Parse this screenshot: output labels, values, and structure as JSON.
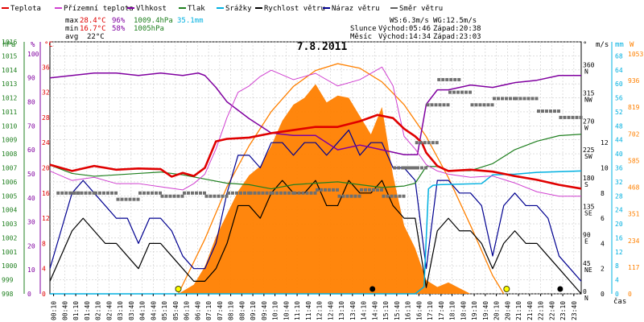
{
  "chart_data": {
    "type": "line",
    "title": "7.8.2011",
    "xlabel": "čas",
    "legend": [
      {
        "label": "Teplota",
        "color": "#e00000"
      },
      {
        "label": "Přízemní teplota",
        "color": "#d040d0"
      },
      {
        "label": "Vlhkost",
        "color": "#8000a0"
      },
      {
        "label": "Tlak",
        "color": "#208020"
      },
      {
        "label": "Srážky",
        "color": "#00b0e0"
      },
      {
        "label": "Rychlost větru",
        "color": "#000000"
      },
      {
        "label": "Náraz větru",
        "color": "#000090"
      },
      {
        "label": "Směr větru",
        "color": "#606060"
      }
    ],
    "stats": {
      "max": {
        "label": "max",
        "temp": "28.4°C",
        "hum": "96%",
        "press": "1009.4hPa",
        "rain": "35.1mm"
      },
      "min": {
        "label": "min",
        "temp": "16.7°C",
        "hum": "58%",
        "press": "1005hPa"
      },
      "avg": {
        "label": "avg",
        "temp": "22°C"
      }
    },
    "wind_info": {
      "ws": "WS:6.3m/s",
      "wg": "WG:12.5m/s"
    },
    "sun": {
      "label": "Slunce",
      "rise": "Východ:05:46",
      "set": "Západ:20:38"
    },
    "moon": {
      "label": "Měsíc",
      "rise": "Východ:14:34",
      "set": "Západ:23:03"
    },
    "axes": {
      "hpa": {
        "unit": "hPa",
        "color": "#208020",
        "ticks": [
          "998",
          "999",
          "1000",
          "1001",
          "1002",
          "1003",
          "1004",
          "1005",
          "1006",
          "1007",
          "1008",
          "1009",
          "1010",
          "1011",
          "1012",
          "1013",
          "1014",
          "1015",
          "1016"
        ]
      },
      "pct": {
        "unit": "%",
        "color": "#8000a0",
        "ticks": [
          "0",
          "10",
          "20",
          "30",
          "40",
          "50",
          "60",
          "70",
          "80",
          "90",
          "100"
        ]
      },
      "temp": {
        "unit": "°C",
        "color": "#e00000",
        "ticks": [
          "0",
          "4",
          "8",
          "12",
          "16",
          "20",
          "24",
          "28",
          "32",
          "36"
        ]
      },
      "ms": {
        "unit": "m/s",
        "color": "#000000",
        "ticks": [
          "0",
          "2",
          "4",
          "6",
          "8",
          "10",
          "12"
        ]
      },
      "deg": {
        "unit": "°",
        "color": "#000000",
        "ticks": [
          "0 N",
          "45 NE",
          "90 E",
          "135 SE",
          "180 S",
          "225 SW",
          "270 W",
          "315 NW",
          "360 N"
        ]
      },
      "mm": {
        "unit": "mm",
        "color": "#00b0e0",
        "ticks": [
          "0",
          "4",
          "8",
          "12",
          "16",
          "20",
          "24",
          "28",
          "32",
          "36",
          "40",
          "44",
          "48",
          "52",
          "56",
          "60",
          "64",
          "68"
        ]
      },
      "wm2": {
        "unit": "W",
        "color": "#ff8000",
        "ticks": [
          "0",
          "117",
          "234",
          "351",
          "468",
          "585",
          "702",
          "819",
          "936",
          "1053"
        ]
      }
    },
    "x_ticks": [
      "00:10",
      "00:40",
      "01:10",
      "01:40",
      "02:10",
      "02:40",
      "03:10",
      "03:40",
      "04:10",
      "04:40",
      "05:10",
      "05:40",
      "06:10",
      "06:40",
      "07:10",
      "07:40",
      "08:10",
      "08:40",
      "09:10",
      "09:40",
      "10:10",
      "10:40",
      "11:10",
      "11:40",
      "12:10",
      "12:40",
      "13:10",
      "13:40",
      "14:10",
      "14:40",
      "15:10",
      "15:40",
      "16:10",
      "16:40",
      "17:10",
      "17:40",
      "18:10",
      "18:40",
      "19:10",
      "19:40",
      "20:10",
      "20:40",
      "21:10",
      "21:40",
      "22:10",
      "22:40",
      "23:10",
      "23:40"
    ],
    "series": {
      "temperature": {
        "t": [
          0,
          1,
          2,
          3,
          4,
          5,
          5.5,
          6,
          6.5,
          7,
          7.5,
          8,
          9,
          10,
          11,
          12,
          13,
          14,
          14.8,
          15.5,
          16,
          16.5,
          16.8,
          17,
          17.5,
          18,
          19,
          20,
          21,
          22,
          23,
          24
        ],
        "v": [
          20.5,
          19.5,
          20.3,
          19.7,
          19.9,
          19.8,
          18.6,
          19.2,
          18.7,
          20,
          24.2,
          24.6,
          24.8,
          25.5,
          26,
          26.5,
          26.5,
          27.4,
          28.4,
          27.9,
          26.2,
          25,
          24,
          22.4,
          20.3,
          19.5,
          19.7,
          19.4,
          18.7,
          18.1,
          17.3,
          16.7
        ]
      },
      "ground_temperature": {
        "t": [
          0,
          1,
          2,
          3,
          4,
          5,
          6,
          6.5,
          7,
          7.5,
          8,
          8.5,
          9,
          9.5,
          10,
          11,
          12,
          13,
          14,
          15,
          15.5,
          16,
          16.5,
          17,
          17.5,
          18,
          19,
          20,
          21,
          22,
          23,
          24
        ],
        "v": [
          19.5,
          18,
          18.5,
          17.5,
          17.5,
          17,
          16.5,
          17.5,
          19,
          23,
          28,
          32,
          33,
          34.5,
          35.5,
          34,
          35,
          33,
          34,
          36,
          33,
          25,
          23,
          20.5,
          19.5,
          19,
          18.5,
          18.7,
          17.6,
          16.2,
          15.5,
          15.5
        ]
      },
      "humidity": {
        "t": [
          0,
          1,
          2,
          3,
          4,
          5,
          6,
          6.7,
          7,
          7.5,
          8,
          9,
          10,
          11,
          12,
          13,
          14,
          15,
          16,
          16.3,
          16.6,
          17,
          17.5,
          18,
          19,
          20,
          21,
          22,
          23,
          24
        ],
        "v": [
          90,
          91,
          92,
          92,
          91,
          92,
          91,
          92,
          91,
          86,
          80,
          73,
          67,
          66,
          66,
          60,
          62,
          60,
          58,
          58,
          58,
          79,
          85,
          85,
          87,
          86,
          88,
          89,
          91,
          91
        ]
      },
      "pressure": {
        "t": [
          0,
          1,
          2,
          3,
          4,
          5,
          6,
          7,
          8,
          9,
          10,
          11,
          12,
          13,
          14,
          15,
          16,
          16.5,
          17,
          17.5,
          18,
          19,
          20,
          21,
          22,
          23,
          24
        ],
        "v": [
          1007.2,
          1006.6,
          1006.4,
          1006.5,
          1006.6,
          1006.7,
          1006.5,
          1006.2,
          1005.9,
          1005.8,
          1005.5,
          1005.8,
          1005.9,
          1006,
          1005.8,
          1005.6,
          1005.7,
          1005.9,
          1007.1,
          1007.1,
          1006.8,
          1006.8,
          1007.3,
          1008.3,
          1008.9,
          1009.3,
          1009.4
        ]
      },
      "rain": {
        "t": [
          0,
          16.5,
          16.9,
          17.1,
          17.3,
          17.6,
          19.5,
          20,
          21,
          22,
          24
        ],
        "v": [
          0,
          0,
          2,
          30,
          31,
          31.2,
          31.5,
          34,
          34.2,
          34.7,
          35.1
        ]
      },
      "wind_speed": {
        "t": [
          0,
          0.5,
          1,
          1.5,
          2,
          2.5,
          3,
          3.5,
          4,
          4.5,
          5,
          5.5,
          6,
          6.5,
          7,
          7.5,
          8,
          8.5,
          9,
          9.5,
          10,
          10.5,
          11,
          11.5,
          12,
          12.5,
          13,
          13.5,
          14,
          14.5,
          15,
          15.5,
          16,
          16.5,
          17,
          17.5,
          18,
          18.5,
          19,
          19.5,
          20,
          20.5,
          21,
          21.5,
          22,
          22.5,
          23,
          23.5,
          24
        ],
        "v": [
          1,
          3,
          5,
          6,
          5,
          4,
          4,
          3,
          2,
          4,
          4,
          3,
          2,
          1,
          1,
          2,
          4,
          7,
          7,
          6,
          8,
          9,
          8,
          8,
          9,
          7,
          7,
          9,
          8,
          8,
          9,
          7,
          6,
          6,
          0.5,
          5,
          6,
          5,
          5,
          4,
          2,
          4,
          5,
          4,
          4,
          3,
          2,
          1,
          0
        ]
      },
      "wind_gust": {
        "t": [
          0,
          0.5,
          1,
          1.5,
          2,
          2.5,
          3,
          3.5,
          4,
          4.5,
          5,
          5.5,
          6,
          6.5,
          7,
          7.5,
          8,
          8.5,
          9,
          9.5,
          10,
          10.5,
          11,
          11.5,
          12,
          12.5,
          13,
          13.5,
          14,
          14.5,
          15,
          15.5,
          16,
          16.5,
          17,
          17.5,
          18,
          18.5,
          19,
          19.5,
          20,
          20.5,
          21,
          21.5,
          22,
          22.5,
          23,
          23.5,
          24
        ],
        "v": [
          2,
          5,
          8,
          9,
          8,
          7,
          6,
          6,
          4,
          6,
          6,
          5,
          3,
          2,
          2,
          4,
          8,
          11,
          11,
          10,
          12,
          12,
          11,
          12,
          12,
          11,
          12,
          13,
          11,
          12,
          12,
          10,
          10,
          9,
          2,
          9,
          9,
          8,
          8,
          7,
          3,
          7,
          8,
          7,
          7,
          6,
          3,
          2,
          1
        ]
      },
      "wind_dir_points": {
        "t": [
          0.3,
          1,
          2,
          3,
          4,
          5,
          6,
          7,
          8,
          9,
          10,
          11,
          12,
          13,
          14,
          15,
          15.5,
          16,
          16.5,
          17,
          17.5,
          18,
          19,
          20,
          21,
          22,
          23
        ],
        "v": [
          160,
          160,
          160,
          150,
          160,
          155,
          160,
          155,
          160,
          160,
          160,
          160,
          165,
          155,
          165,
          155,
          200,
          200,
          240,
          300,
          340,
          320,
          300,
          310,
          310,
          290,
          280
        ]
      },
      "solar_radiation": {
        "t": [
          5.8,
          6.5,
          7,
          7.5,
          8,
          8.5,
          9,
          9.5,
          10,
          10.5,
          11,
          11.5,
          12,
          12.5,
          13,
          13.5,
          14,
          14.5,
          15,
          15.5,
          16,
          16.5,
          17,
          17.5,
          18,
          19,
          20
        ],
        "v": [
          0,
          40,
          120,
          250,
          350,
          450,
          520,
          560,
          650,
          760,
          830,
          860,
          920,
          840,
          870,
          860,
          780,
          700,
          820,
          520,
          300,
          200,
          60,
          30,
          50,
          0,
          0
        ]
      },
      "solar_max": {
        "t": [
          5.8,
          7,
          8,
          9,
          10,
          11,
          12,
          13,
          14,
          15,
          16,
          17,
          18,
          19,
          20,
          20.5
        ],
        "v": [
          0,
          240,
          470,
          650,
          800,
          910,
          980,
          1010,
          990,
          930,
          830,
          690,
          510,
          300,
          80,
          0
        ]
      }
    },
    "markers": [
      {
        "kind": "sunrise",
        "t": 5.8
      },
      {
        "kind": "moonrise",
        "t": 14.57
      },
      {
        "kind": "sunset",
        "t": 20.63
      },
      {
        "kind": "moonset",
        "t": 23.05
      }
    ]
  }
}
